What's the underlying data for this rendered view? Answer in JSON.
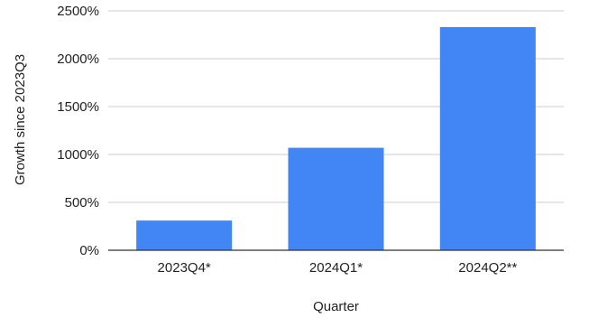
{
  "chart_data": {
    "type": "bar",
    "title": "",
    "xlabel": "Quarter",
    "ylabel": "Growth since 2023Q3",
    "categories": [
      "2023Q4*",
      "2024Q1*",
      "2024Q2**"
    ],
    "values": [
      310,
      1070,
      2330
    ],
    "ylim": [
      0,
      2500
    ],
    "yticks": [
      0,
      500,
      1000,
      1500,
      2000,
      2500
    ],
    "ytick_labels": [
      "0%",
      "500%",
      "1000%",
      "1500%",
      "2000%",
      "2500%"
    ],
    "grid": true,
    "legend": "none",
    "bar_color": "#4285f4"
  }
}
